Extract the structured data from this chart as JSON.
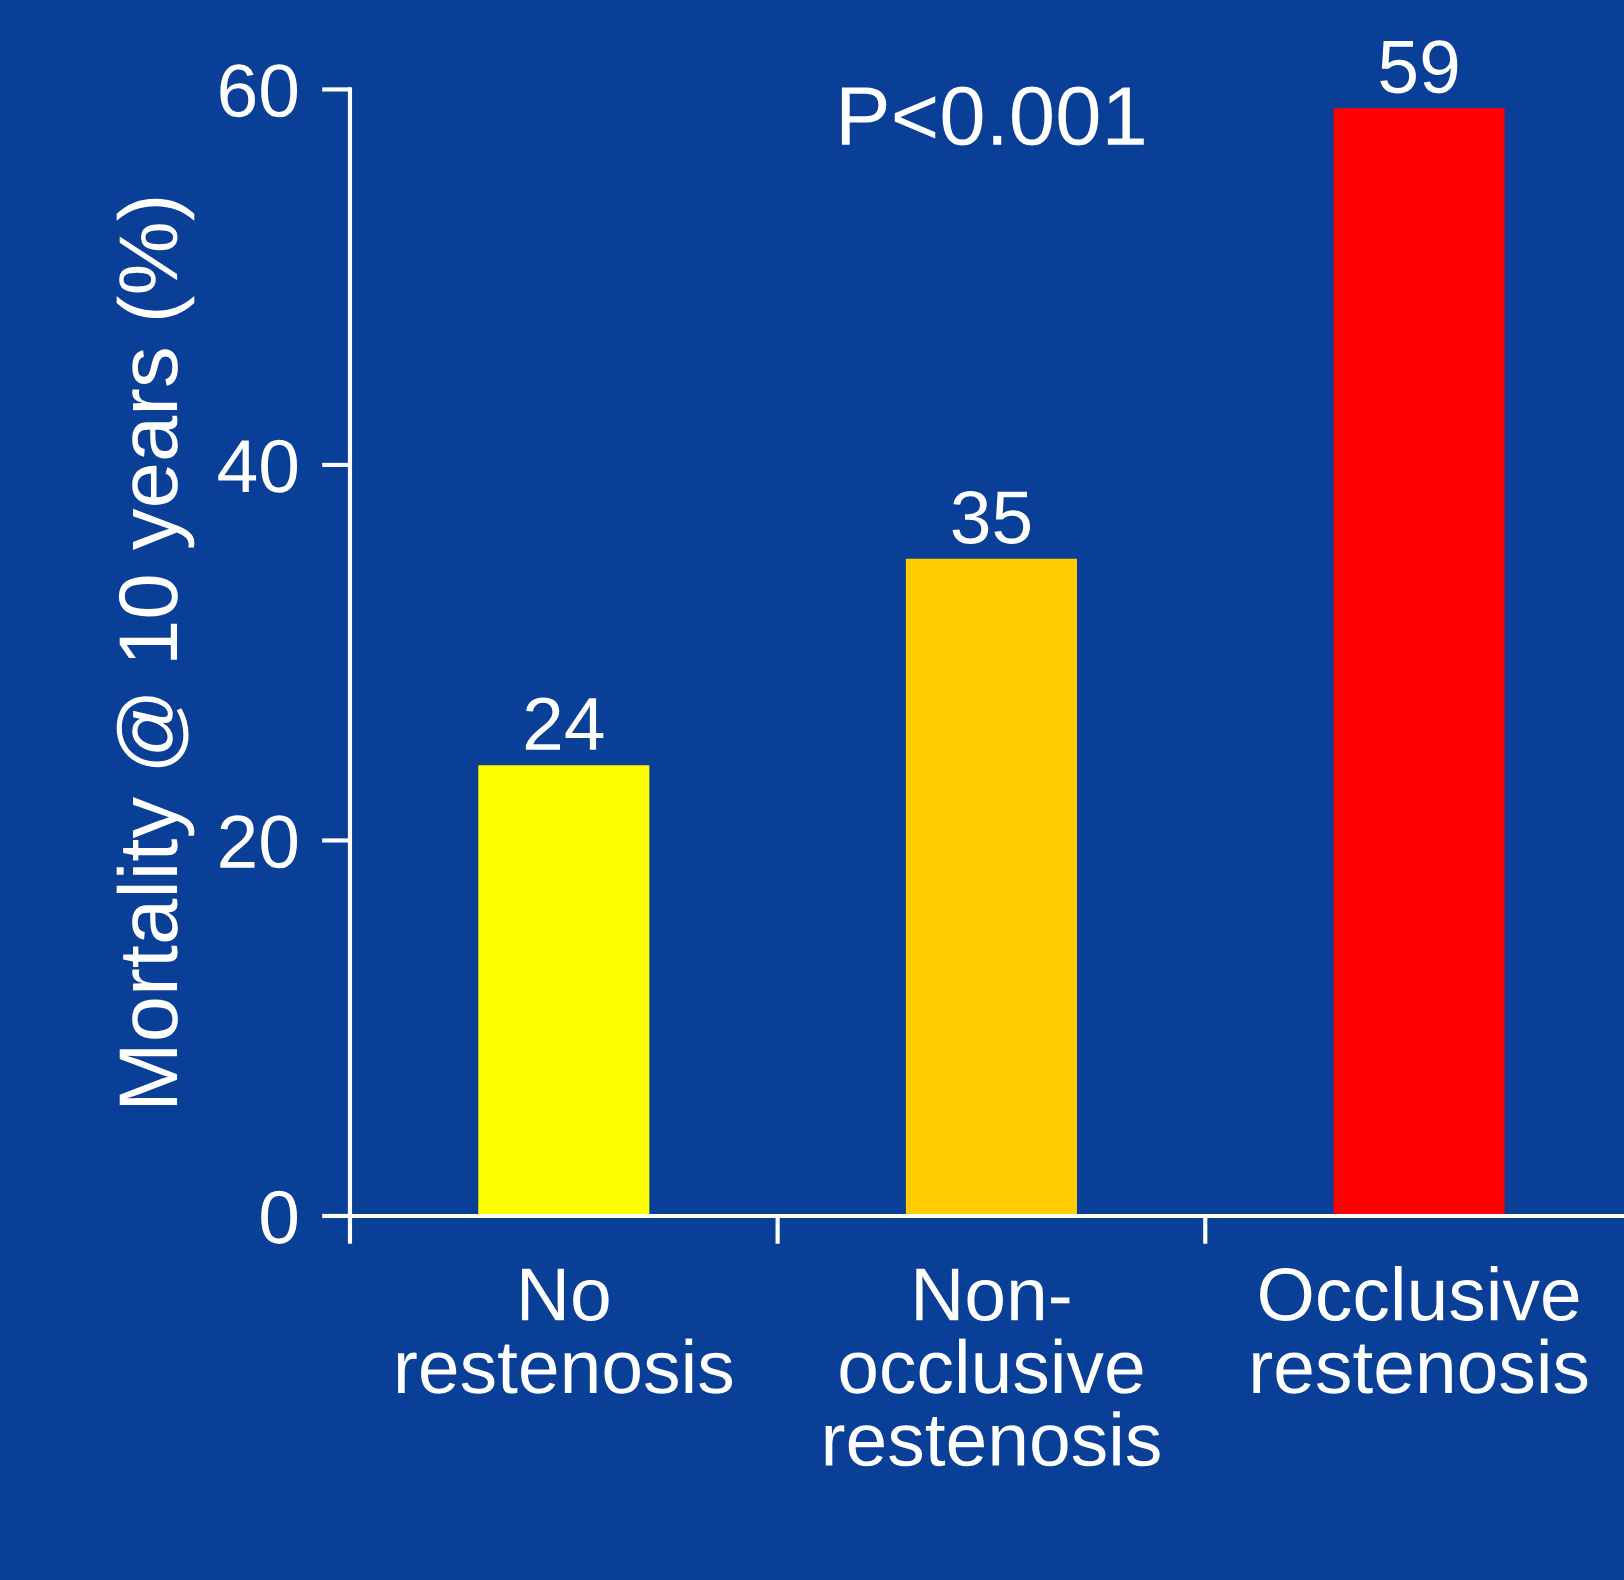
{
  "chart_data": {
    "type": "bar",
    "ylabel": "Mortality @ 10 years (%)",
    "categories": [
      "No\nrestenosis",
      "Non-\nocclusive\nrestenosis",
      "Occlusive\nrestenosis"
    ],
    "values": [
      24,
      35,
      59
    ],
    "colors": [
      "#ffff00",
      "#ffcc00",
      "#ff0000"
    ],
    "ylim": [
      0,
      60
    ],
    "yticks": [
      0,
      20,
      40,
      60
    ],
    "data_labels": true,
    "grid": false,
    "legend": false,
    "annotations": [
      "P<0.001"
    ]
  }
}
